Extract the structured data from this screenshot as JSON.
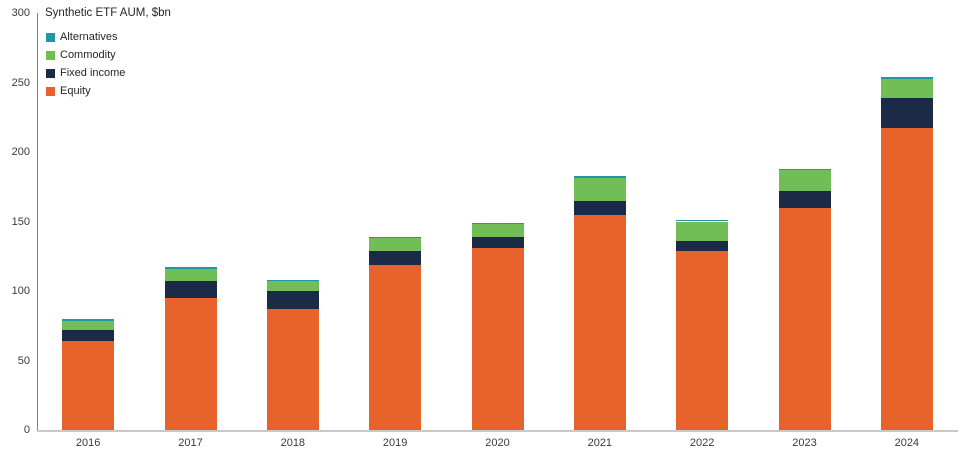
{
  "title": "Synthetic ETF AUM, $bn",
  "chart_data": {
    "type": "bar",
    "stacked": true,
    "title": "Synthetic ETF AUM, $bn",
    "xlabel": "",
    "ylabel": "Synthetic ETF AUM, $bn",
    "ylim": [
      0,
      300
    ],
    "yticks": [
      0,
      50,
      100,
      150,
      200,
      250,
      300
    ],
    "grid": false,
    "legend_position": "top-left",
    "legend_order_top_to_bottom": [
      "Alternatives",
      "Commodity",
      "Fixed income",
      "Equity"
    ],
    "categories": [
      "2016",
      "2017",
      "2018",
      "2019",
      "2020",
      "2021",
      "2022",
      "2023",
      "2024"
    ],
    "series": [
      {
        "name": "Equity",
        "color": "#E8632C",
        "values": [
          64,
          95,
          87,
          119,
          131,
          155,
          129,
          160,
          217
        ]
      },
      {
        "name": "Fixed income",
        "color": "#1B2A47",
        "values": [
          8,
          12,
          13,
          10,
          8,
          10,
          7,
          12,
          21.5
        ]
      },
      {
        "name": "Commodity",
        "color": "#70BE55",
        "values": [
          6.5,
          9,
          7,
          9,
          9,
          16,
          14,
          15,
          14
        ]
      },
      {
        "name": "Alternatives",
        "color": "#2097A3",
        "values": [
          1.5,
          1,
          1,
          1,
          1,
          1.5,
          1,
          1,
          1.5
        ]
      }
    ],
    "totals": [
      80,
      117,
      108,
      139,
      149,
      182.5,
      151,
      188,
      254
    ]
  }
}
